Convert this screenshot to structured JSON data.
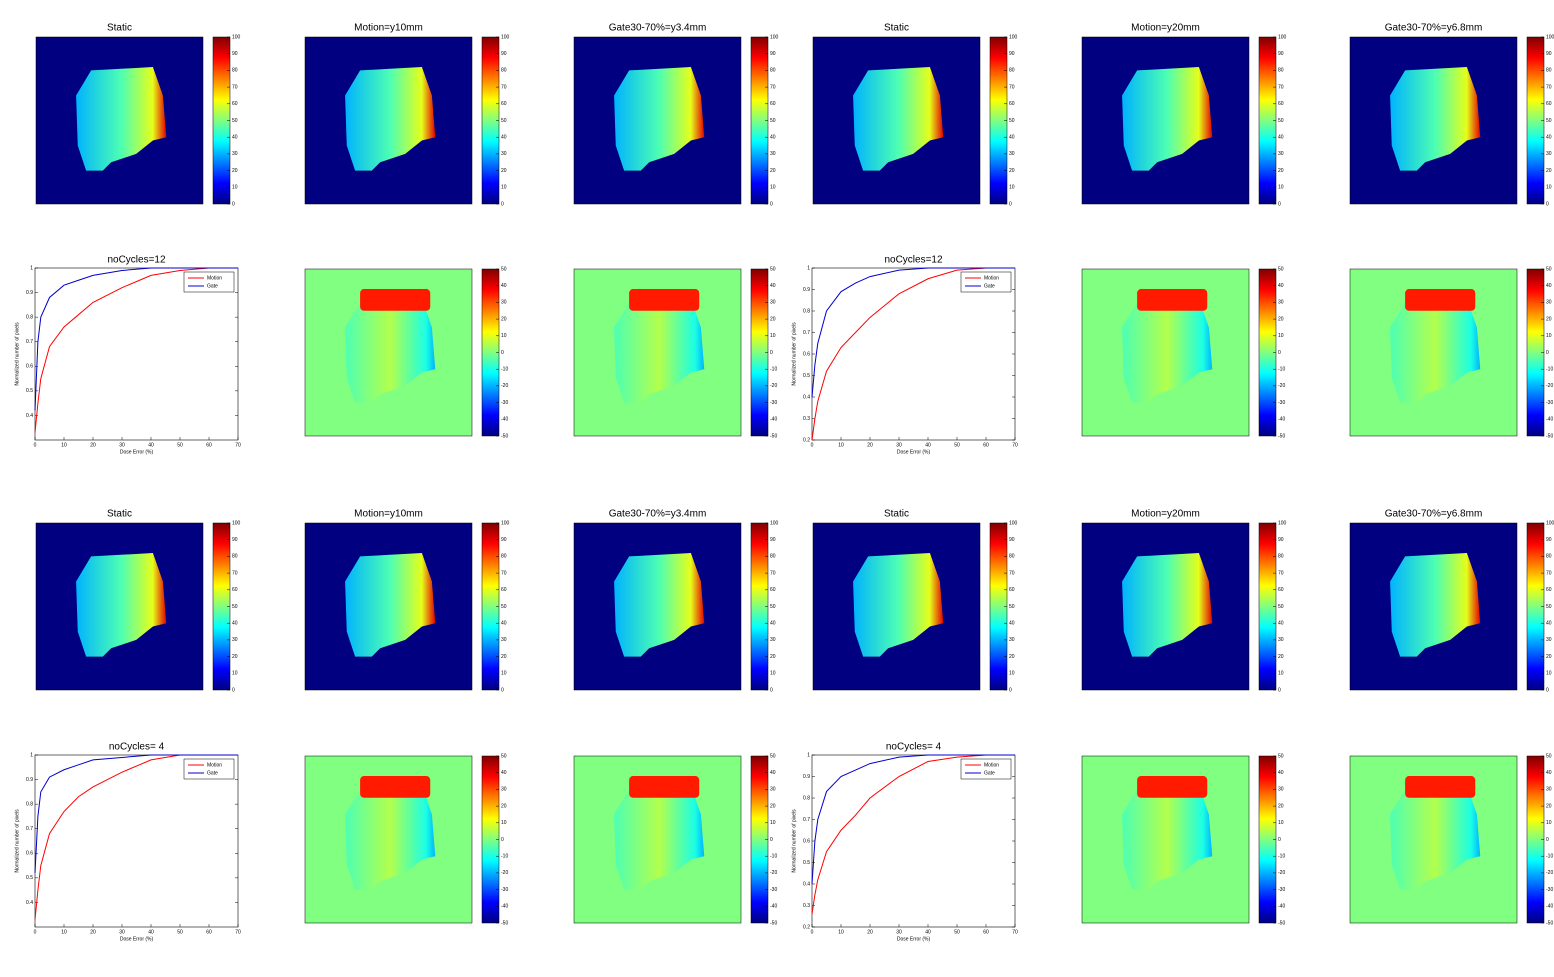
{
  "chart_data": [
    {
      "type": "heatmap",
      "title": "Static",
      "colormap": "jet",
      "clim": [
        0,
        100
      ],
      "cticks": [
        0,
        10,
        20,
        30,
        40,
        50,
        60,
        70,
        80,
        90,
        100
      ]
    },
    {
      "type": "heatmap",
      "title": "Motion=y10mm",
      "colormap": "jet",
      "clim": [
        0,
        100
      ],
      "cticks": [
        0,
        10,
        20,
        30,
        40,
        50,
        60,
        70,
        80,
        90,
        100
      ]
    },
    {
      "type": "heatmap",
      "title": "Gate30-70%=y3.4mm",
      "colormap": "jet",
      "clim": [
        0,
        100
      ],
      "cticks": [
        0,
        10,
        20,
        30,
        40,
        50,
        60,
        70,
        80,
        90,
        100
      ]
    },
    {
      "type": "heatmap",
      "title": "Static",
      "colormap": "jet",
      "clim": [
        0,
        100
      ],
      "cticks": [
        0,
        10,
        20,
        30,
        40,
        50,
        60,
        70,
        80,
        90,
        100
      ]
    },
    {
      "type": "heatmap",
      "title": "Motion=y20mm",
      "colormap": "jet",
      "clim": [
        0,
        100
      ],
      "cticks": [
        0,
        10,
        20,
        30,
        40,
        50,
        60,
        70,
        80,
        90,
        100
      ]
    },
    {
      "type": "heatmap",
      "title": "Gate30-70%=y6.8mm",
      "colormap": "jet",
      "clim": [
        0,
        100
      ],
      "cticks": [
        0,
        10,
        20,
        30,
        40,
        50,
        60,
        70,
        80,
        90,
        100
      ]
    },
    {
      "type": "line",
      "title": "noCycles=12",
      "xlabel": "Dose Error (%)",
      "ylabel": "Normalized number of pixels",
      "legend": "upper right",
      "x": [
        0,
        1,
        2,
        5,
        10,
        15,
        20,
        30,
        40,
        50,
        60,
        70
      ],
      "xlim": [
        0,
        70
      ],
      "xticks": [
        0,
        10,
        20,
        30,
        40,
        50,
        60,
        70
      ],
      "ylim": [
        0.3,
        1
      ],
      "yticks": [
        0.4,
        0.5,
        0.6,
        0.7,
        0.8,
        0.9,
        1
      ],
      "series": [
        {
          "name": "Motion",
          "color": "#ff0000",
          "values": [
            0.33,
            0.45,
            0.55,
            0.68,
            0.76,
            0.81,
            0.86,
            0.92,
            0.97,
            0.99,
            1,
            1
          ]
        },
        {
          "name": "Gate",
          "color": "#0000cc",
          "values": [
            0.42,
            0.7,
            0.8,
            0.88,
            0.93,
            0.95,
            0.97,
            0.99,
            1,
            1,
            1,
            1
          ]
        }
      ]
    },
    {
      "type": "heatmap",
      "colormap": "jet",
      "clim": [
        -50,
        50
      ],
      "cticks": [
        -50,
        -40,
        -30,
        -20,
        -10,
        0,
        10,
        20,
        30,
        40,
        50
      ]
    },
    {
      "type": "heatmap",
      "colormap": "jet",
      "clim": [
        -50,
        50
      ],
      "cticks": [
        -50,
        -40,
        -30,
        -20,
        -10,
        0,
        10,
        20,
        30,
        40,
        50
      ]
    },
    {
      "type": "line",
      "title": "noCycles=12",
      "xlabel": "Dose Error (%)",
      "ylabel": "Normalized number of pixels",
      "legend": "upper right",
      "x": [
        0,
        1,
        2,
        5,
        10,
        15,
        20,
        30,
        40,
        50,
        60,
        70
      ],
      "xlim": [
        0,
        70
      ],
      "xticks": [
        0,
        10,
        20,
        30,
        40,
        50,
        60,
        70
      ],
      "ylim": [
        0.2,
        1
      ],
      "yticks": [
        0.2,
        0.3,
        0.4,
        0.5,
        0.6,
        0.7,
        0.8,
        0.9,
        1
      ],
      "series": [
        {
          "name": "Motion",
          "color": "#ff0000",
          "values": [
            0.2,
            0.3,
            0.38,
            0.52,
            0.63,
            0.7,
            0.77,
            0.88,
            0.95,
            0.99,
            1,
            1
          ]
        },
        {
          "name": "Gate",
          "color": "#0000cc",
          "values": [
            0.4,
            0.55,
            0.65,
            0.8,
            0.89,
            0.93,
            0.96,
            0.99,
            1,
            1,
            1,
            1
          ]
        }
      ]
    },
    {
      "type": "heatmap",
      "colormap": "jet",
      "clim": [
        -50,
        50
      ],
      "cticks": [
        -50,
        -40,
        -30,
        -20,
        -10,
        0,
        10,
        20,
        30,
        40,
        50
      ]
    },
    {
      "type": "heatmap",
      "colormap": "jet",
      "clim": [
        -50,
        50
      ],
      "cticks": [
        -50,
        -40,
        -30,
        -20,
        -10,
        0,
        10,
        20,
        30,
        40,
        50
      ]
    },
    {
      "type": "heatmap",
      "title": "Static",
      "colormap": "jet",
      "clim": [
        0,
        100
      ],
      "cticks": [
        0,
        10,
        20,
        30,
        40,
        50,
        60,
        70,
        80,
        90,
        100
      ]
    },
    {
      "type": "heatmap",
      "title": "Motion=y10mm",
      "colormap": "jet",
      "clim": [
        0,
        100
      ],
      "cticks": [
        0,
        10,
        20,
        30,
        40,
        50,
        60,
        70,
        80,
        90,
        100
      ]
    },
    {
      "type": "heatmap",
      "title": "Gate30-70%=y3.4mm",
      "colormap": "jet",
      "clim": [
        0,
        100
      ],
      "cticks": [
        0,
        10,
        20,
        30,
        40,
        50,
        60,
        70,
        80,
        90,
        100
      ]
    },
    {
      "type": "heatmap",
      "title": "Static",
      "colormap": "jet",
      "clim": [
        0,
        100
      ],
      "cticks": [
        0,
        10,
        20,
        30,
        40,
        50,
        60,
        70,
        80,
        90,
        100
      ]
    },
    {
      "type": "heatmap",
      "title": "Motion=y20mm",
      "colormap": "jet",
      "clim": [
        0,
        100
      ],
      "cticks": [
        0,
        10,
        20,
        30,
        40,
        50,
        60,
        70,
        80,
        90,
        100
      ]
    },
    {
      "type": "heatmap",
      "title": "Gate30-70%=y6.8mm",
      "colormap": "jet",
      "clim": [
        0,
        100
      ],
      "cticks": [
        0,
        10,
        20,
        30,
        40,
        50,
        60,
        70,
        80,
        90,
        100
      ]
    },
    {
      "type": "line",
      "title": "noCycles= 4",
      "xlabel": "Dose Error (%)",
      "ylabel": "Normalized number of pixels",
      "legend": "upper right",
      "x": [
        0,
        1,
        2,
        5,
        10,
        15,
        20,
        30,
        40,
        50,
        60,
        70
      ],
      "xlim": [
        0,
        70
      ],
      "xticks": [
        0,
        10,
        20,
        30,
        40,
        50,
        60,
        70
      ],
      "ylim": [
        0.3,
        1
      ],
      "yticks": [
        0.4,
        0.5,
        0.6,
        0.7,
        0.8,
        0.9,
        1
      ],
      "series": [
        {
          "name": "Motion",
          "color": "#ff0000",
          "values": [
            0.33,
            0.45,
            0.55,
            0.68,
            0.77,
            0.83,
            0.87,
            0.93,
            0.98,
            1,
            1,
            1
          ]
        },
        {
          "name": "Gate",
          "color": "#0000cc",
          "values": [
            0.52,
            0.75,
            0.85,
            0.91,
            0.94,
            0.96,
            0.98,
            0.99,
            1,
            1,
            1,
            1
          ]
        }
      ]
    },
    {
      "type": "heatmap",
      "colormap": "jet",
      "clim": [
        -50,
        50
      ],
      "cticks": [
        -50,
        -40,
        -30,
        -20,
        -10,
        0,
        10,
        20,
        30,
        40,
        50
      ]
    },
    {
      "type": "heatmap",
      "colormap": "jet",
      "clim": [
        -50,
        50
      ],
      "cticks": [
        -50,
        -40,
        -30,
        -20,
        -10,
        0,
        10,
        20,
        30,
        40,
        50
      ]
    },
    {
      "type": "line",
      "title": "noCycles= 4",
      "xlabel": "Dose Error (%)",
      "ylabel": "Normalized number of pixels",
      "legend": "upper right",
      "x": [
        0,
        1,
        2,
        5,
        10,
        15,
        20,
        30,
        40,
        50,
        60,
        70
      ],
      "xlim": [
        0,
        70
      ],
      "xticks": [
        0,
        10,
        20,
        30,
        40,
        50,
        60,
        70
      ],
      "ylim": [
        0.2,
        1
      ],
      "yticks": [
        0.2,
        0.3,
        0.4,
        0.5,
        0.6,
        0.7,
        0.8,
        0.9,
        1
      ],
      "series": [
        {
          "name": "Motion",
          "color": "#ff0000",
          "values": [
            0.26,
            0.35,
            0.42,
            0.55,
            0.65,
            0.72,
            0.8,
            0.9,
            0.97,
            0.99,
            1,
            1
          ]
        },
        {
          "name": "Gate",
          "color": "#0000cc",
          "values": [
            0.4,
            0.6,
            0.7,
            0.83,
            0.9,
            0.93,
            0.96,
            0.99,
            1,
            1,
            1,
            1
          ]
        }
      ]
    },
    {
      "type": "heatmap",
      "colormap": "jet",
      "clim": [
        -50,
        50
      ],
      "cticks": [
        -50,
        -40,
        -30,
        -20,
        -10,
        0,
        10,
        20,
        30,
        40,
        50
      ]
    },
    {
      "type": "heatmap",
      "colormap": "jet",
      "clim": [
        -50,
        50
      ],
      "cticks": [
        -50,
        -40,
        -30,
        -20,
        -10,
        0,
        10,
        20,
        30,
        40,
        50
      ]
    }
  ]
}
